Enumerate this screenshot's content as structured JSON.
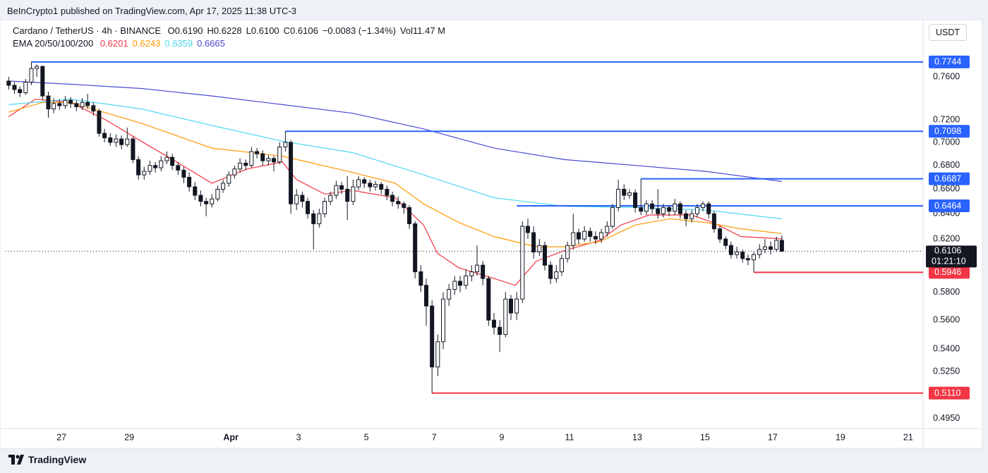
{
  "header": {
    "publisher": "BeInCrypto1 published on TradingView.com, Apr 17, 2025 11:38 UTC-3",
    "footer_logo": "TradingView"
  },
  "chart_data": {
    "type": "candlestick",
    "title": "Cardano / TetherUS · 4h · BINANCE",
    "ohlc_text": [
      "O0.6190",
      "H0.6228",
      "L0.6100",
      "C0.6106",
      "−0.0083 (−1.34%)",
      "Vol11.47 M"
    ],
    "indicator_label": "EMA 20/50/100/200",
    "currency": "USDT",
    "countdown": "01:21:10",
    "log_scale": true,
    "grid": false,
    "up_color": "#ffffff",
    "down_color": "#131722",
    "xlim": [
      25.35,
      52.44
    ],
    "xticks": [
      27,
      29,
      {
        "value": 32,
        "label": "Apr"
      },
      {
        "value": 34,
        "label": "3"
      },
      {
        "value": 36,
        "label": "5"
      },
      {
        "value": 38,
        "label": "7"
      },
      {
        "value": 40,
        "label": "9"
      },
      {
        "value": 42,
        "label": "11"
      },
      {
        "value": 44,
        "label": "13"
      },
      {
        "value": 46,
        "label": "15"
      },
      {
        "value": 48,
        "label": "17"
      },
      {
        "value": 50,
        "label": "19"
      },
      {
        "value": 52,
        "label": "21"
      }
    ],
    "ylim": [
      0.4887,
      0.8165
    ],
    "yticks": [
      {
        "value": 0.76,
        "label": "0.7600"
      },
      {
        "value": 0.72,
        "label": "0.7200"
      },
      {
        "value": 0.7,
        "label": "0.7000"
      },
      {
        "value": 0.68,
        "label": "0.6800"
      },
      {
        "value": 0.66,
        "label": "0.6600"
      },
      {
        "value": 0.64,
        "label": "0.6400"
      },
      {
        "value": 0.62,
        "label": "0.6200"
      },
      {
        "value": 0.58,
        "label": "0.5800"
      },
      {
        "value": 0.56,
        "label": "0.5600"
      },
      {
        "value": 0.54,
        "label": "0.5400"
      },
      {
        "value": 0.525,
        "label": "0.5250"
      },
      {
        "value": 0.495,
        "label": "0.4950"
      }
    ],
    "candles": [
      [
        25.44,
        0.756,
        0.76,
        0.748,
        0.752
      ],
      [
        25.61,
        0.752,
        0.755,
        0.744,
        0.748
      ],
      [
        25.77,
        0.748,
        0.751,
        0.741,
        0.745
      ],
      [
        25.94,
        0.745,
        0.758,
        0.743,
        0.755
      ],
      [
        26.11,
        0.755,
        0.7744,
        0.752,
        0.768
      ],
      [
        26.27,
        0.768,
        0.772,
        0.76,
        0.77
      ],
      [
        26.44,
        0.77,
        0.771,
        0.738,
        0.742
      ],
      [
        26.61,
        0.742,
        0.746,
        0.722,
        0.73
      ],
      [
        26.77,
        0.73,
        0.74,
        0.726,
        0.735
      ],
      [
        26.94,
        0.735,
        0.739,
        0.729,
        0.733
      ],
      [
        27.11,
        0.733,
        0.742,
        0.73,
        0.738
      ],
      [
        27.27,
        0.738,
        0.741,
        0.731,
        0.735
      ],
      [
        27.44,
        0.735,
        0.738,
        0.728,
        0.732
      ],
      [
        27.61,
        0.732,
        0.74,
        0.729,
        0.736
      ],
      [
        27.77,
        0.736,
        0.744,
        0.73,
        0.733
      ],
      [
        27.94,
        0.733,
        0.736,
        0.724,
        0.728
      ],
      [
        28.11,
        0.728,
        0.73,
        0.705,
        0.708
      ],
      [
        28.27,
        0.708,
        0.712,
        0.7,
        0.704
      ],
      [
        28.44,
        0.704,
        0.708,
        0.697,
        0.7
      ],
      [
        28.61,
        0.7,
        0.707,
        0.696,
        0.703
      ],
      [
        28.77,
        0.703,
        0.706,
        0.694,
        0.698
      ],
      [
        28.94,
        0.698,
        0.713,
        0.696,
        0.703
      ],
      [
        29.11,
        0.703,
        0.705,
        0.682,
        0.685
      ],
      [
        29.27,
        0.685,
        0.688,
        0.668,
        0.672
      ],
      [
        29.44,
        0.672,
        0.679,
        0.668,
        0.675
      ],
      [
        29.61,
        0.675,
        0.684,
        0.672,
        0.68
      ],
      [
        29.77,
        0.68,
        0.683,
        0.674,
        0.678
      ],
      [
        29.94,
        0.678,
        0.688,
        0.675,
        0.684
      ],
      [
        30.11,
        0.684,
        0.692,
        0.681,
        0.687
      ],
      [
        30.27,
        0.687,
        0.69,
        0.676,
        0.68
      ],
      [
        30.44,
        0.68,
        0.683,
        0.672,
        0.676
      ],
      [
        30.61,
        0.676,
        0.679,
        0.665,
        0.67
      ],
      [
        30.77,
        0.67,
        0.674,
        0.658,
        0.662
      ],
      [
        30.94,
        0.662,
        0.666,
        0.651,
        0.655
      ],
      [
        31.11,
        0.655,
        0.659,
        0.646,
        0.65
      ],
      [
        31.27,
        0.65,
        0.653,
        0.638,
        0.648
      ],
      [
        31.44,
        0.648,
        0.656,
        0.645,
        0.652
      ],
      [
        31.61,
        0.652,
        0.663,
        0.65,
        0.66
      ],
      [
        31.77,
        0.66,
        0.668,
        0.657,
        0.665
      ],
      [
        31.94,
        0.665,
        0.675,
        0.662,
        0.672
      ],
      [
        32.11,
        0.672,
        0.68,
        0.669,
        0.677
      ],
      [
        32.27,
        0.677,
        0.686,
        0.674,
        0.682
      ],
      [
        32.44,
        0.682,
        0.685,
        0.676,
        0.68
      ],
      [
        32.61,
        0.68,
        0.696,
        0.678,
        0.692
      ],
      [
        32.77,
        0.692,
        0.695,
        0.686,
        0.69
      ],
      [
        32.94,
        0.69,
        0.693,
        0.68,
        0.684
      ],
      [
        33.11,
        0.684,
        0.689,
        0.68,
        0.686
      ],
      [
        33.27,
        0.686,
        0.688,
        0.675,
        0.683
      ],
      [
        33.44,
        0.683,
        0.7,
        0.681,
        0.696
      ],
      [
        33.61,
        0.696,
        0.7098,
        0.692,
        0.7
      ],
      [
        33.77,
        0.7,
        0.702,
        0.64,
        0.648
      ],
      [
        33.94,
        0.648,
        0.66,
        0.643,
        0.655
      ],
      [
        34.11,
        0.655,
        0.658,
        0.645,
        0.65
      ],
      [
        34.27,
        0.65,
        0.653,
        0.636,
        0.64
      ],
      [
        34.44,
        0.64,
        0.643,
        0.612,
        0.632
      ],
      [
        34.61,
        0.632,
        0.644,
        0.629,
        0.64
      ],
      [
        34.77,
        0.64,
        0.653,
        0.637,
        0.65
      ],
      [
        34.94,
        0.65,
        0.658,
        0.647,
        0.655
      ],
      [
        35.11,
        0.655,
        0.667,
        0.652,
        0.663
      ],
      [
        35.27,
        0.663,
        0.666,
        0.656,
        0.66
      ],
      [
        35.44,
        0.66,
        0.671,
        0.635,
        0.65
      ],
      [
        35.61,
        0.65,
        0.668,
        0.647,
        0.662
      ],
      [
        35.77,
        0.662,
        0.671,
        0.659,
        0.668
      ],
      [
        35.94,
        0.668,
        0.67,
        0.661,
        0.665
      ],
      [
        36.11,
        0.665,
        0.668,
        0.658,
        0.662
      ],
      [
        36.27,
        0.662,
        0.667,
        0.659,
        0.664
      ],
      [
        36.44,
        0.664,
        0.666,
        0.656,
        0.66
      ],
      [
        36.61,
        0.66,
        0.663,
        0.651,
        0.655
      ],
      [
        36.77,
        0.655,
        0.658,
        0.646,
        0.65
      ],
      [
        36.94,
        0.65,
        0.654,
        0.644,
        0.648
      ],
      [
        37.11,
        0.648,
        0.65,
        0.64,
        0.645
      ],
      [
        37.27,
        0.645,
        0.647,
        0.628,
        0.632
      ],
      [
        37.44,
        0.632,
        0.634,
        0.59,
        0.595
      ],
      [
        37.61,
        0.595,
        0.6,
        0.58,
        0.585
      ],
      [
        37.77,
        0.585,
        0.59,
        0.556,
        0.57
      ],
      [
        37.94,
        0.57,
        0.574,
        0.511,
        0.528
      ],
      [
        38.11,
        0.528,
        0.55,
        0.522,
        0.545
      ],
      [
        38.27,
        0.545,
        0.58,
        0.54,
        0.575
      ],
      [
        38.44,
        0.575,
        0.586,
        0.57,
        0.582
      ],
      [
        38.61,
        0.582,
        0.592,
        0.578,
        0.588
      ],
      [
        38.77,
        0.588,
        0.592,
        0.58,
        0.585
      ],
      [
        38.94,
        0.585,
        0.597,
        0.582,
        0.592
      ],
      [
        39.11,
        0.592,
        0.6,
        0.588,
        0.595
      ],
      [
        39.27,
        0.595,
        0.615,
        0.592,
        0.6
      ],
      [
        39.44,
        0.6,
        0.603,
        0.585,
        0.59
      ],
      [
        39.61,
        0.59,
        0.592,
        0.556,
        0.56
      ],
      [
        39.77,
        0.56,
        0.565,
        0.55,
        0.555
      ],
      [
        39.94,
        0.555,
        0.56,
        0.538,
        0.55
      ],
      [
        40.11,
        0.55,
        0.58,
        0.548,
        0.575
      ],
      [
        40.27,
        0.575,
        0.578,
        0.56,
        0.565
      ],
      [
        40.44,
        0.565,
        0.58,
        0.56,
        0.575
      ],
      [
        40.61,
        0.575,
        0.634,
        0.572,
        0.63
      ],
      [
        40.77,
        0.63,
        0.636,
        0.62,
        0.625
      ],
      [
        40.94,
        0.625,
        0.63,
        0.605,
        0.61
      ],
      [
        41.11,
        0.61,
        0.62,
        0.607,
        0.615
      ],
      [
        41.27,
        0.615,
        0.618,
        0.596,
        0.6
      ],
      [
        41.44,
        0.6,
        0.603,
        0.586,
        0.59
      ],
      [
        41.61,
        0.59,
        0.6,
        0.587,
        0.595
      ],
      [
        41.77,
        0.595,
        0.608,
        0.592,
        0.605
      ],
      [
        41.94,
        0.605,
        0.618,
        0.602,
        0.615
      ],
      [
        42.11,
        0.615,
        0.64,
        0.612,
        0.625
      ],
      [
        42.27,
        0.625,
        0.628,
        0.616,
        0.62
      ],
      [
        42.44,
        0.62,
        0.63,
        0.618,
        0.626
      ],
      [
        42.61,
        0.626,
        0.629,
        0.618,
        0.622
      ],
      [
        42.77,
        0.622,
        0.626,
        0.616,
        0.62
      ],
      [
        42.94,
        0.62,
        0.628,
        0.617,
        0.625
      ],
      [
        43.11,
        0.625,
        0.634,
        0.622,
        0.63
      ],
      [
        43.27,
        0.63,
        0.648,
        0.628,
        0.645
      ],
      [
        43.44,
        0.645,
        0.668,
        0.642,
        0.66
      ],
      [
        43.61,
        0.66,
        0.664,
        0.651,
        0.655
      ],
      [
        43.77,
        0.655,
        0.66,
        0.652,
        0.657
      ],
      [
        43.94,
        0.657,
        0.66,
        0.641,
        0.645
      ],
      [
        44.11,
        0.645,
        0.6687,
        0.639,
        0.642
      ],
      [
        44.27,
        0.642,
        0.651,
        0.639,
        0.648
      ],
      [
        44.44,
        0.648,
        0.651,
        0.64,
        0.644
      ],
      [
        44.61,
        0.644,
        0.66,
        0.636,
        0.64
      ],
      [
        44.77,
        0.64,
        0.648,
        0.637,
        0.645
      ],
      [
        44.94,
        0.645,
        0.647,
        0.638,
        0.642
      ],
      [
        45.11,
        0.642,
        0.652,
        0.639,
        0.648
      ],
      [
        45.27,
        0.648,
        0.65,
        0.636,
        0.64
      ],
      [
        45.44,
        0.64,
        0.643,
        0.63,
        0.636
      ],
      [
        45.61,
        0.636,
        0.643,
        0.633,
        0.64
      ],
      [
        45.77,
        0.64,
        0.648,
        0.637,
        0.645
      ],
      [
        45.94,
        0.645,
        0.65,
        0.642,
        0.648
      ],
      [
        46.11,
        0.648,
        0.65,
        0.636,
        0.64
      ],
      [
        46.27,
        0.64,
        0.642,
        0.625,
        0.628
      ],
      [
        46.44,
        0.628,
        0.63,
        0.617,
        0.62
      ],
      [
        46.61,
        0.62,
        0.622,
        0.612,
        0.615
      ],
      [
        46.77,
        0.615,
        0.618,
        0.605,
        0.608
      ],
      [
        46.94,
        0.608,
        0.614,
        0.605,
        0.61
      ],
      [
        47.11,
        0.61,
        0.612,
        0.602,
        0.605
      ],
      [
        47.27,
        0.605,
        0.608,
        0.6,
        0.604
      ],
      [
        47.44,
        0.604,
        0.61,
        0.5946,
        0.608
      ],
      [
        47.61,
        0.608,
        0.616,
        0.605,
        0.612
      ],
      [
        47.77,
        0.612,
        0.62,
        0.609,
        0.614
      ],
      [
        47.94,
        0.614,
        0.618,
        0.608,
        0.612
      ],
      [
        48.11,
        0.612,
        0.622,
        0.61,
        0.619
      ],
      [
        48.27,
        0.619,
        0.6228,
        0.61,
        0.6106
      ]
    ],
    "series": [
      {
        "color": "#f23645",
        "x": [
          25.44,
          26.23,
          27.27,
          28.31,
          29.35,
          30.4,
          31.44,
          32.48,
          33.52,
          33.94,
          34.77,
          35.6,
          36.85,
          37.69,
          38.1,
          38.73,
          39.77,
          40.4,
          41.02,
          41.85,
          42.9,
          43.52,
          44.35,
          45.6,
          46.23,
          47.06,
          48.27
        ],
        "values": [
          0.723,
          0.739,
          0.736,
          0.72,
          0.701,
          0.683,
          0.665,
          0.677,
          0.683,
          0.668,
          0.656,
          0.659,
          0.653,
          0.631,
          0.609,
          0.598,
          0.59,
          0.585,
          0.603,
          0.611,
          0.619,
          0.631,
          0.639,
          0.639,
          0.633,
          0.622,
          0.6201
        ]
      },
      {
        "color": "#ff9800",
        "x": [
          25.44,
          26.44,
          27.27,
          29.35,
          31.44,
          33.52,
          35.6,
          36.85,
          37.69,
          38.73,
          39.77,
          41.02,
          41.85,
          42.9,
          43.94,
          44.98,
          46.02,
          47.06,
          48.27
        ],
        "values": [
          0.727,
          0.736,
          0.736,
          0.717,
          0.695,
          0.688,
          0.674,
          0.665,
          0.648,
          0.633,
          0.622,
          0.614,
          0.614,
          0.618,
          0.631,
          0.636,
          0.633,
          0.628,
          0.6243
        ]
      },
      {
        "color": "#4dd8f0",
        "x": [
          25.44,
          27.27,
          29.35,
          31.44,
          33.52,
          35.6,
          37.69,
          39.77,
          41.85,
          43.94,
          46.02,
          48.27
        ],
        "values": [
          0.734,
          0.739,
          0.73,
          0.715,
          0.701,
          0.691,
          0.672,
          0.653,
          0.646,
          0.645,
          0.643,
          0.6359
        ]
      },
      {
        "color": "#4a4ad6",
        "x": [
          25.44,
          27.27,
          29.35,
          31.44,
          33.52,
          35.6,
          37.69,
          39.77,
          41.85,
          43.94,
          46.02,
          48.27
        ],
        "values": [
          0.756,
          0.753,
          0.749,
          0.742,
          0.734,
          0.726,
          0.712,
          0.695,
          0.685,
          0.68,
          0.675,
          0.6665
        ]
      }
    ],
    "price_lines": [
      {
        "price": 0.7744,
        "from": 26.11,
        "color": "#2962ff"
      },
      {
        "price": 0.7098,
        "from": 33.61,
        "color": "#2962ff"
      },
      {
        "price": 0.6687,
        "from": 44.11,
        "color": "#2962ff"
      },
      {
        "price": 0.6464,
        "from": 40.44,
        "color": "#2962ff"
      },
      {
        "price": 0.5946,
        "from": 47.44,
        "color": "#f23645"
      },
      {
        "price": {
          "value": 0.511,
          "label": "0.5110"
        },
        "from": 37.94,
        "color": "#f23645"
      }
    ]
  }
}
